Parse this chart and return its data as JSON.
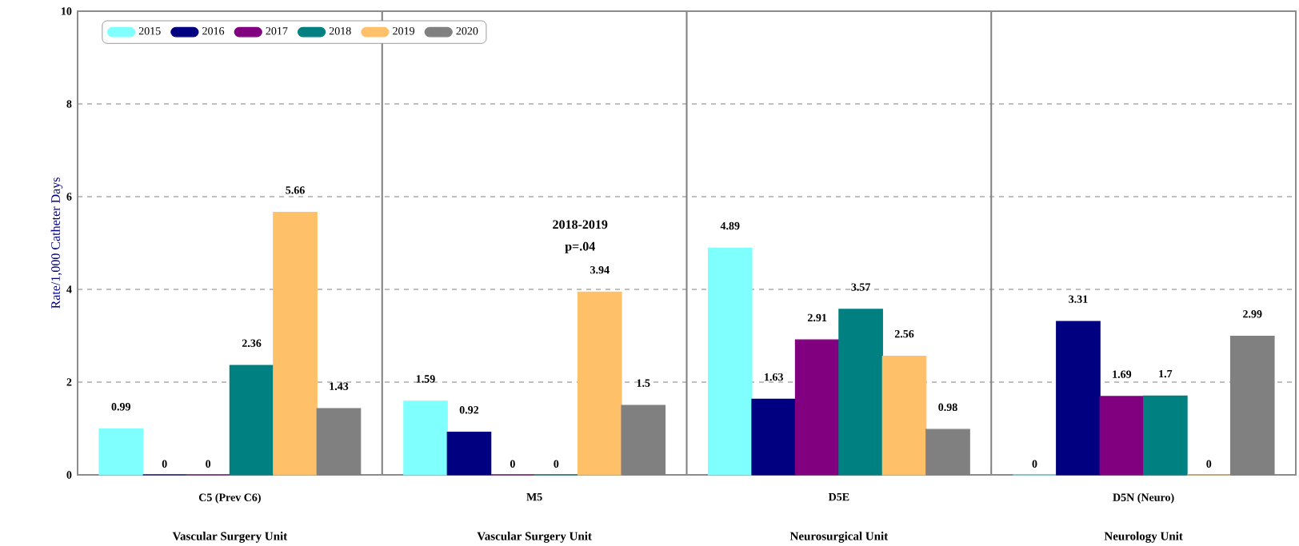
{
  "chart_data": {
    "type": "bar",
    "ylabel": "Rate/1,000 Catheter Days",
    "categories": [
      "C5 (Prev C6)",
      "M5",
      "D5E",
      "D5N (Neuro)"
    ],
    "series": [
      {
        "name": "2015",
        "color": "#80ffff",
        "values": [
          0.99,
          1.59,
          4.89,
          0
        ]
      },
      {
        "name": "2016",
        "color": "#000080",
        "values": [
          0,
          0.92,
          1.63,
          3.31
        ]
      },
      {
        "name": "2017",
        "color": "#800080",
        "values": [
          0,
          0,
          2.91,
          1.69
        ]
      },
      {
        "name": "2018",
        "color": "#008080",
        "values": [
          2.36,
          0,
          3.57,
          1.7
        ]
      },
      {
        "name": "2019",
        "color": "#ffc06a",
        "values": [
          5.66,
          3.94,
          2.56,
          0
        ]
      },
      {
        "name": "2020",
        "color": "#808080",
        "values": [
          1.43,
          1.5,
          0.98,
          2.99
        ]
      }
    ],
    "ylim": [
      0,
      10
    ],
    "yticks": [
      0,
      2,
      4,
      6,
      8,
      10
    ],
    "grid": "y",
    "legend": "top left",
    "data_labels": true,
    "annotations": [
      "Vascular Surgery Unit",
      "Vascular Surgery Unit",
      "Neurosurgical Unit",
      "Neurology Unit",
      "2018-2019",
      "p=.04"
    ]
  }
}
